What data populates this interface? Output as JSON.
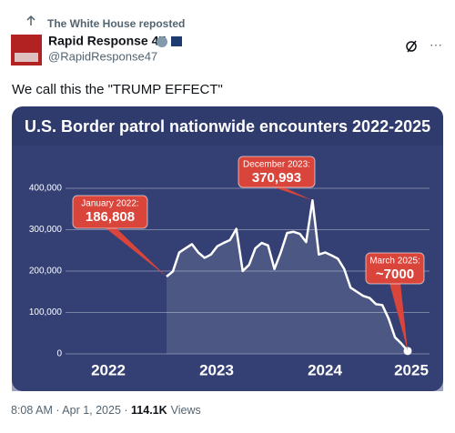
{
  "repost": "The White House reposted",
  "author": {
    "name": "Rapid Response 47",
    "handle": "@RapidResponse47"
  },
  "text": "We call this the \"TRUMP EFFECT\"",
  "chart_data": {
    "type": "line",
    "title": "U.S. Border patrol nationwide encounters 2022-2025",
    "year_labels": [
      "2022",
      "2023",
      "2024",
      "2025"
    ],
    "values": [
      186808,
      199000,
      245000,
      255000,
      265000,
      245000,
      232000,
      240000,
      260000,
      268000,
      275000,
      302000,
      200000,
      215000,
      255000,
      268000,
      262000,
      205000,
      245000,
      292000,
      295000,
      290000,
      270000,
      370993,
      240000,
      245000,
      238000,
      230000,
      205000,
      160000,
      150000,
      140000,
      135000,
      120000,
      118000,
      85000,
      40000,
      25000,
      7000
    ],
    "value_labels": [
      "186,808",
      null,
      null,
      null,
      null,
      null,
      null,
      null,
      null,
      null,
      null,
      null,
      null,
      null,
      null,
      null,
      null,
      null,
      null,
      null,
      null,
      null,
      null,
      "370,993",
      null,
      null,
      null,
      null,
      null,
      null,
      null,
      null,
      null,
      null,
      null,
      null,
      null,
      null,
      "~7000"
    ],
    "point_titles": [
      "January 2022:",
      null,
      null,
      null,
      null,
      null,
      null,
      null,
      null,
      null,
      null,
      null,
      null,
      null,
      null,
      null,
      null,
      null,
      null,
      null,
      null,
      null,
      null,
      "December 2023:",
      null,
      null,
      null,
      null,
      null,
      null,
      null,
      null,
      null,
      null,
      null,
      null,
      null,
      null,
      "March 2025:"
    ],
    "color": "#ffffff",
    "ylim": [
      0,
      400000
    ],
    "yticks": [
      0,
      {
        "value": 100000,
        "label": "100,000"
      },
      {
        "value": 200000,
        "label": "200,000"
      },
      {
        "value": 300000,
        "label": "300,000"
      },
      {
        "value": 400000,
        "label": "400,000"
      }
    ],
    "grid": true
  },
  "time": "8:08 AM · Apr 1, 2025 · ",
  "views": "114.1K",
  "views_label": "Views"
}
